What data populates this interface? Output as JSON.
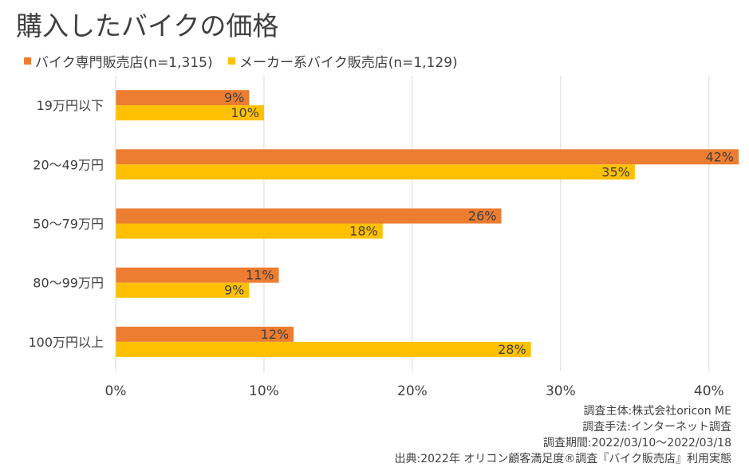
{
  "chart_data": {
    "type": "bar",
    "orientation": "horizontal",
    "title": "購入したバイクの価格",
    "categories": [
      "19万円以下",
      "20～49万円",
      "50～79万円",
      "80～99万円",
      "100万円以上"
    ],
    "series": [
      {
        "name": "バイク専門販売店(n=1,315)",
        "color": "#ED7D31",
        "values": [
          9,
          42,
          26,
          11,
          12
        ],
        "labels": [
          "9%",
          "42%",
          "26%",
          "11%",
          "12%"
        ]
      },
      {
        "name": "メーカー系バイク販売店(n=1,129)",
        "color": "#FFC000",
        "values": [
          10,
          35,
          18,
          9,
          28
        ],
        "labels": [
          "10%",
          "35%",
          "18%",
          "9%",
          "28%"
        ]
      }
    ],
    "xlim": [
      0,
      42
    ],
    "xticks": [
      0,
      10,
      20,
      30,
      40
    ],
    "xtick_labels": [
      "0%",
      "10%",
      "20%",
      "30%",
      "40%"
    ],
    "grid": "vertical",
    "legend": "top-left"
  },
  "footnotes": [
    "調査主体:株式会社oricon ME",
    "調査手法:インターネット調査",
    "調査期間:2022/03/10～2022/03/18",
    "出典:2022年 オリコン顧客満足度®調査『バイク販売店』利用実態"
  ]
}
